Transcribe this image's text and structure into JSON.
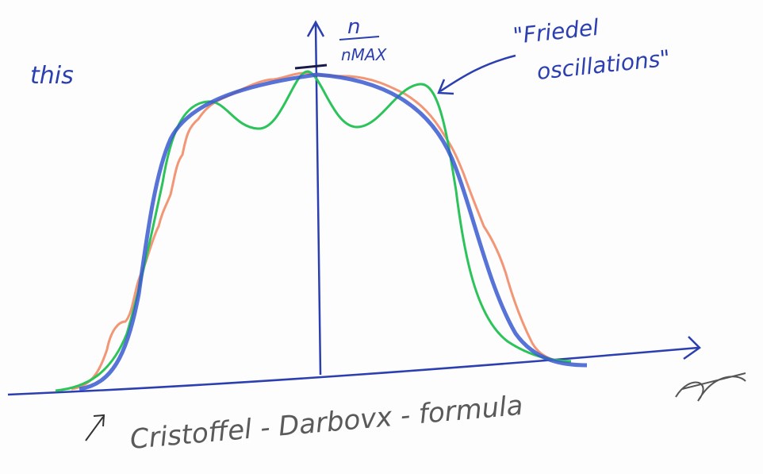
{
  "labels": {
    "margin_text": "this",
    "y_axis_numerator": "n",
    "y_axis_denominator": "nMAX",
    "annotation_line1": "\"Friedel",
    "annotation_line2": "oscillations\"",
    "caption": "Cristoffel - Darbovx - formula"
  }
}
